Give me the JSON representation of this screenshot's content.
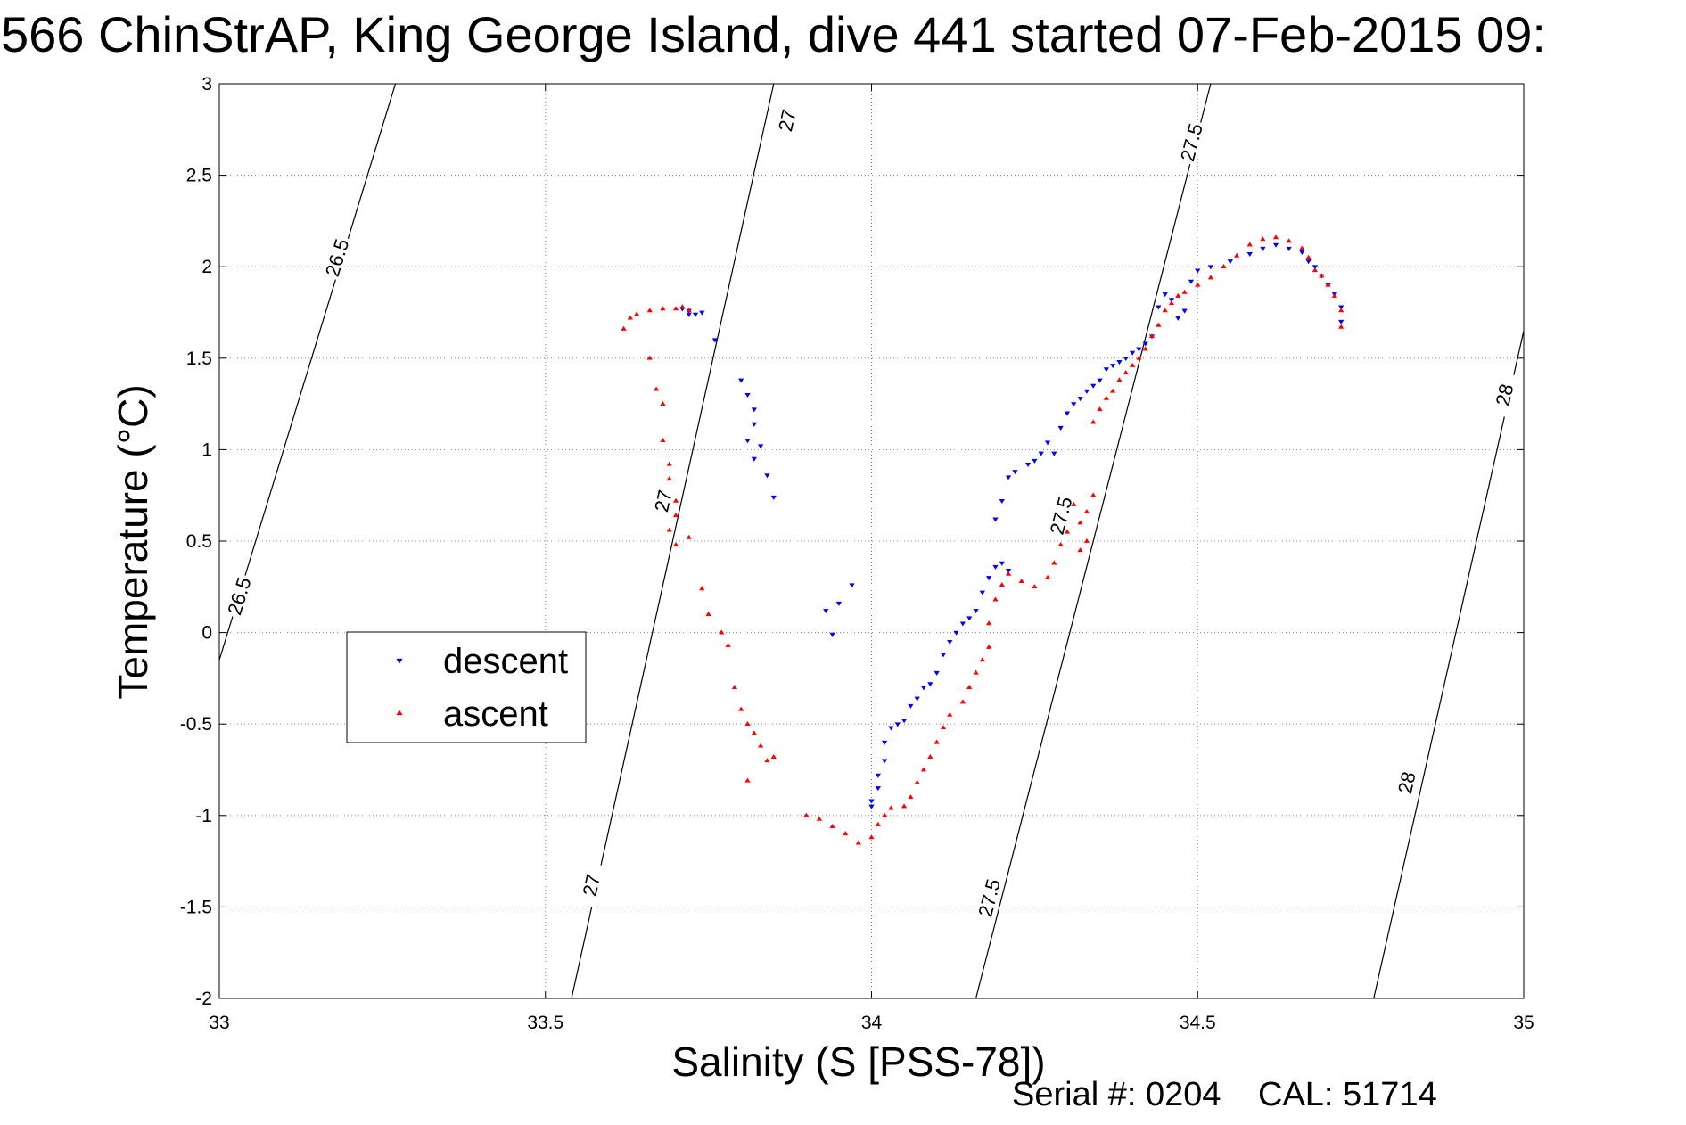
{
  "chart_data": {
    "type": "scatter",
    "title": "566 ChinStrAP, King George Island, dive 441 started 07-Feb-2015 09:",
    "xlabel": "Salinity (S [PSS-78])",
    "ylabel": "Temperature (°C)",
    "xlim": [
      33,
      35
    ],
    "ylim": [
      -2,
      3
    ],
    "xticks": [
      "33",
      "33.5",
      "34",
      "34.5",
      "35"
    ],
    "yticks": [
      "3",
      "2.5",
      "2",
      "1.5",
      "1",
      "0.5",
      "0",
      "-0.5",
      "-1",
      "-1.5",
      "-2"
    ],
    "grid": true,
    "legend_position": "center-left",
    "series": [
      {
        "name": "descent",
        "color": "#0000ff",
        "marker": "triangle-down",
        "points": [
          [
            33.71,
            1.77
          ],
          [
            33.72,
            1.76
          ],
          [
            33.72,
            1.74
          ],
          [
            33.73,
            1.74
          ],
          [
            33.74,
            1.75
          ],
          [
            33.76,
            1.6
          ],
          [
            33.8,
            1.38
          ],
          [
            33.81,
            1.3
          ],
          [
            33.82,
            1.22
          ],
          [
            33.82,
            1.14
          ],
          [
            33.81,
            1.05
          ],
          [
            33.83,
            1.02
          ],
          [
            33.82,
            0.95
          ],
          [
            33.84,
            0.86
          ],
          [
            33.85,
            0.74
          ],
          [
            33.93,
            0.12
          ],
          [
            33.95,
            0.16
          ],
          [
            33.97,
            0.26
          ],
          [
            33.94,
            -0.01
          ],
          [
            34.0,
            -0.95
          ],
          [
            34.0,
            -0.92
          ],
          [
            34.01,
            -0.85
          ],
          [
            34.01,
            -0.78
          ],
          [
            34.02,
            -0.7
          ],
          [
            34.02,
            -0.6
          ],
          [
            34.03,
            -0.52
          ],
          [
            34.04,
            -0.5
          ],
          [
            34.05,
            -0.48
          ],
          [
            34.06,
            -0.4
          ],
          [
            34.07,
            -0.36
          ],
          [
            34.08,
            -0.3
          ],
          [
            34.09,
            -0.28
          ],
          [
            34.1,
            -0.22
          ],
          [
            34.11,
            -0.12
          ],
          [
            34.12,
            -0.05
          ],
          [
            34.13,
            0.0
          ],
          [
            34.14,
            0.05
          ],
          [
            34.15,
            0.08
          ],
          [
            34.16,
            0.12
          ],
          [
            34.17,
            0.22
          ],
          [
            34.18,
            0.3
          ],
          [
            34.19,
            0.36
          ],
          [
            34.2,
            0.38
          ],
          [
            34.21,
            0.34
          ],
          [
            34.19,
            0.62
          ],
          [
            34.2,
            0.72
          ],
          [
            34.21,
            0.85
          ],
          [
            34.22,
            0.88
          ],
          [
            34.24,
            0.92
          ],
          [
            34.25,
            0.94
          ],
          [
            34.26,
            0.98
          ],
          [
            34.27,
            1.04
          ],
          [
            34.28,
            0.98
          ],
          [
            34.29,
            1.12
          ],
          [
            34.3,
            1.2
          ],
          [
            34.31,
            1.25
          ],
          [
            34.32,
            1.28
          ],
          [
            34.33,
            1.32
          ],
          [
            34.34,
            1.35
          ],
          [
            34.35,
            1.38
          ],
          [
            34.36,
            1.44
          ],
          [
            34.37,
            1.46
          ],
          [
            34.38,
            1.48
          ],
          [
            34.39,
            1.5
          ],
          [
            34.4,
            1.53
          ],
          [
            34.41,
            1.55
          ],
          [
            34.42,
            1.58
          ],
          [
            34.43,
            1.62
          ],
          [
            34.44,
            1.78
          ],
          [
            34.45,
            1.85
          ],
          [
            34.46,
            1.82
          ],
          [
            34.47,
            1.72
          ],
          [
            34.48,
            1.76
          ],
          [
            34.49,
            1.92
          ],
          [
            34.5,
            1.98
          ],
          [
            34.52,
            2.0
          ],
          [
            34.55,
            2.03
          ],
          [
            34.58,
            2.07
          ],
          [
            34.6,
            2.1
          ],
          [
            34.62,
            2.12
          ],
          [
            34.64,
            2.1
          ],
          [
            34.66,
            2.08
          ],
          [
            34.67,
            2.03
          ],
          [
            34.68,
            2.0
          ],
          [
            34.69,
            1.95
          ],
          [
            34.7,
            1.9
          ],
          [
            34.71,
            1.85
          ],
          [
            34.72,
            1.78
          ],
          [
            34.72,
            1.7
          ]
        ]
      },
      {
        "name": "ascent",
        "color": "#ff0000",
        "marker": "triangle-up",
        "points": [
          [
            33.62,
            1.66
          ],
          [
            33.63,
            1.72
          ],
          [
            33.64,
            1.74
          ],
          [
            33.66,
            1.76
          ],
          [
            33.68,
            1.77
          ],
          [
            33.7,
            1.77
          ],
          [
            33.71,
            1.78
          ],
          [
            33.72,
            1.76
          ],
          [
            33.66,
            1.5
          ],
          [
            33.67,
            1.33
          ],
          [
            33.68,
            1.25
          ],
          [
            33.68,
            1.05
          ],
          [
            33.69,
            0.92
          ],
          [
            33.69,
            0.84
          ],
          [
            33.7,
            0.72
          ],
          [
            33.7,
            0.64
          ],
          [
            33.69,
            0.56
          ],
          [
            33.7,
            0.48
          ],
          [
            33.72,
            0.52
          ],
          [
            33.74,
            0.24
          ],
          [
            33.75,
            0.1
          ],
          [
            33.77,
            0.0
          ],
          [
            33.78,
            -0.07
          ],
          [
            33.79,
            -0.3
          ],
          [
            33.8,
            -0.42
          ],
          [
            33.81,
            -0.5
          ],
          [
            33.82,
            -0.55
          ],
          [
            33.83,
            -0.62
          ],
          [
            33.84,
            -0.7
          ],
          [
            33.85,
            -0.68
          ],
          [
            33.81,
            -0.81
          ],
          [
            33.9,
            -1.0
          ],
          [
            33.92,
            -1.02
          ],
          [
            33.94,
            -1.06
          ],
          [
            33.96,
            -1.1
          ],
          [
            33.98,
            -1.15
          ],
          [
            34.0,
            -1.12
          ],
          [
            34.01,
            -1.05
          ],
          [
            34.02,
            -1.0
          ],
          [
            34.03,
            -0.96
          ],
          [
            34.05,
            -0.95
          ],
          [
            34.06,
            -0.9
          ],
          [
            34.07,
            -0.82
          ],
          [
            34.08,
            -0.75
          ],
          [
            34.09,
            -0.68
          ],
          [
            34.1,
            -0.6
          ],
          [
            34.11,
            -0.52
          ],
          [
            34.12,
            -0.45
          ],
          [
            34.14,
            -0.38
          ],
          [
            34.15,
            -0.3
          ],
          [
            34.16,
            -0.22
          ],
          [
            34.17,
            -0.15
          ],
          [
            34.18,
            -0.08
          ],
          [
            34.18,
            0.05
          ],
          [
            34.19,
            0.18
          ],
          [
            34.2,
            0.26
          ],
          [
            34.21,
            0.32
          ],
          [
            34.23,
            0.28
          ],
          [
            34.25,
            0.25
          ],
          [
            34.27,
            0.3
          ],
          [
            34.28,
            0.38
          ],
          [
            34.29,
            0.48
          ],
          [
            34.3,
            0.55
          ],
          [
            34.31,
            0.7
          ],
          [
            34.32,
            0.6
          ],
          [
            34.33,
            0.66
          ],
          [
            34.34,
            0.75
          ],
          [
            34.32,
            0.45
          ],
          [
            34.33,
            0.5
          ],
          [
            34.34,
            1.15
          ],
          [
            34.35,
            1.22
          ],
          [
            34.36,
            1.28
          ],
          [
            34.37,
            1.32
          ],
          [
            34.38,
            1.38
          ],
          [
            34.39,
            1.42
          ],
          [
            34.4,
            1.46
          ],
          [
            34.41,
            1.5
          ],
          [
            34.42,
            1.55
          ],
          [
            34.43,
            1.62
          ],
          [
            34.44,
            1.68
          ],
          [
            34.45,
            1.76
          ],
          [
            34.46,
            1.8
          ],
          [
            34.47,
            1.84
          ],
          [
            34.48,
            1.86
          ],
          [
            34.5,
            1.9
          ],
          [
            34.52,
            1.94
          ],
          [
            34.54,
            2.0
          ],
          [
            34.56,
            2.06
          ],
          [
            34.58,
            2.12
          ],
          [
            34.6,
            2.15
          ],
          [
            34.62,
            2.16
          ],
          [
            34.64,
            2.14
          ],
          [
            34.66,
            2.1
          ],
          [
            34.67,
            2.05
          ],
          [
            34.68,
            1.98
          ],
          [
            34.69,
            1.95
          ],
          [
            34.7,
            1.9
          ],
          [
            34.71,
            1.84
          ],
          [
            34.72,
            1.76
          ],
          [
            34.72,
            1.67
          ]
        ]
      }
    ],
    "density_contours": [
      {
        "label": "26.5",
        "points": [
          [
            33.0,
            -0.15
          ],
          [
            33.27,
            3.0
          ]
        ],
        "label_positions": [
          [
            33.18,
            2.05
          ],
          [
            33.03,
            0.2
          ]
        ]
      },
      {
        "label": "27",
        "points": [
          [
            33.54,
            -2.0
          ],
          [
            33.85,
            3.0
          ]
        ],
        "label_positions": [
          [
            33.87,
            2.8
          ],
          [
            33.68,
            0.72
          ],
          [
            33.57,
            -1.38
          ]
        ]
      },
      {
        "label": "27.5",
        "points": [
          [
            34.16,
            -2.0
          ],
          [
            34.52,
            3.0
          ]
        ],
        "label_positions": [
          [
            34.49,
            2.68
          ],
          [
            34.29,
            0.64
          ],
          [
            34.18,
            -1.45
          ]
        ]
      },
      {
        "label": "28",
        "points": [
          [
            34.77,
            -2.0
          ],
          [
            35.0,
            1.65
          ]
        ],
        "label_positions": [
          [
            34.97,
            1.3
          ],
          [
            34.82,
            -0.82
          ]
        ]
      }
    ]
  },
  "footer": {
    "serial_label": "Serial #: 0204",
    "cal_label": "CAL: 51714"
  }
}
